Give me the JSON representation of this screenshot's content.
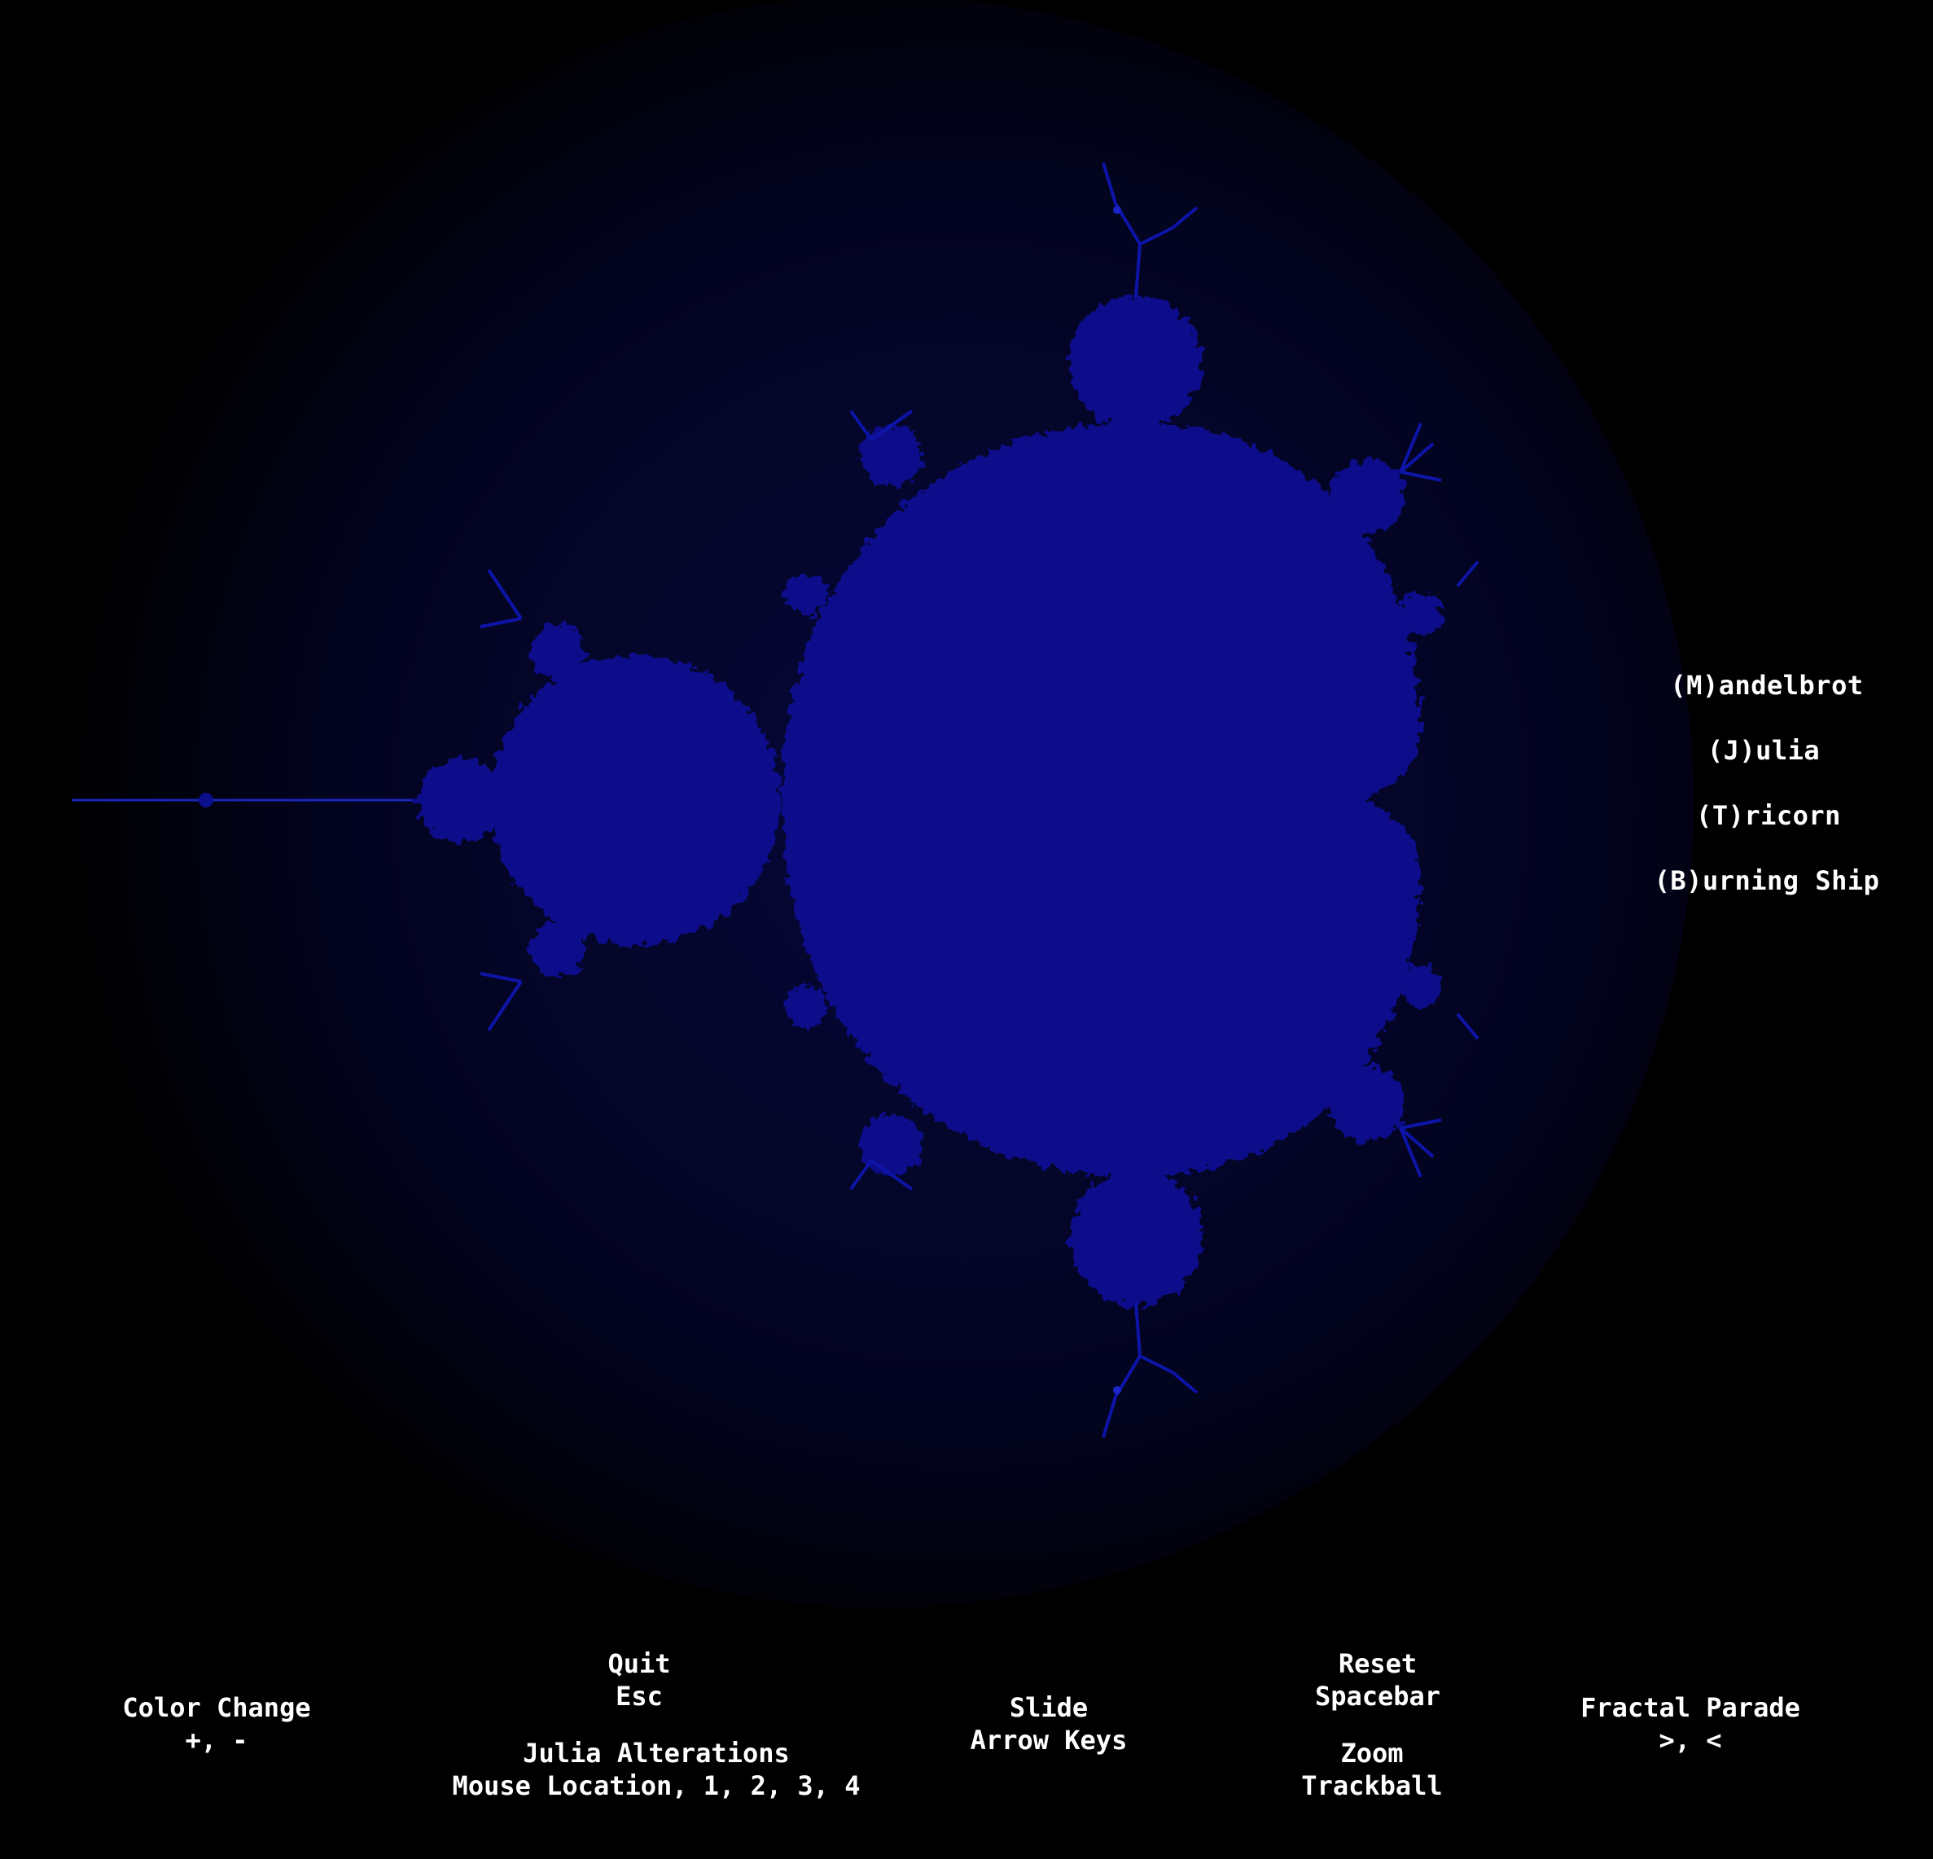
{
  "colors": {
    "background": "#000000",
    "fractal_fill": "#0a0f8c",
    "fractal_glow": "#05074a",
    "text": "#ffffff"
  },
  "fractal_menu": {
    "mandelbrot": "(M)andelbrot",
    "julia": "(J)ulia",
    "tricorn": "(T)ricorn",
    "burning_ship": "(B)urning Ship"
  },
  "controls": {
    "color_change": {
      "label": "Color Change",
      "keys": "+, -"
    },
    "quit": {
      "label": "Quit",
      "keys": "Esc"
    },
    "julia_alterations": {
      "label": "Julia Alterations",
      "keys": "Mouse Location, 1, 2, 3, 4"
    },
    "slide": {
      "label": "Slide",
      "keys": "Arrow Keys"
    },
    "reset": {
      "label": "Reset",
      "keys": "Spacebar"
    },
    "zoom": {
      "label": "Zoom",
      "keys": "Trackball"
    },
    "fractal_parade": {
      "label": "Fractal Parade",
      "keys": ">, <"
    }
  }
}
